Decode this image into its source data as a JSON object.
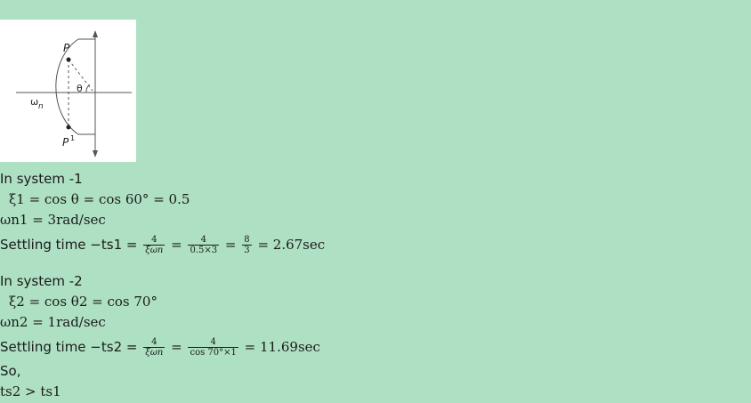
{
  "figure": {
    "label_p": "P",
    "label_p1": "P",
    "label_p1_sup": "1",
    "label_theta": "θ",
    "label_omega": "ω",
    "label_omega_sub": "n"
  },
  "system1": {
    "heading": "In system -1",
    "xi_line": "ξ1 = cos θ = cos 60° = 0.5",
    "omega_line": "ωn1 = 3rad/sec",
    "settling_prefix": "Settling time −ts1 =",
    "frac1_num": "4",
    "frac1_den": "ξωn",
    "frac2_num": "4",
    "frac2_den": "0.5×3",
    "frac3_num": "8",
    "frac3_den": "3",
    "result": "= 2.67sec"
  },
  "system2": {
    "heading": "In system -2",
    "xi_line": "ξ2 = cos θ2 = cos 70°",
    "omega_line": "ωn2 = 1rad/sec",
    "settling_prefix": "Settling time −ts2 =",
    "frac1_num": "4",
    "frac1_den": "ξωn",
    "frac2_num": "4",
    "frac2_den": "cos 70°×1",
    "result": "= 11.69sec"
  },
  "conclusion": {
    "so": "So,",
    "final": "ts2 > ts1"
  }
}
